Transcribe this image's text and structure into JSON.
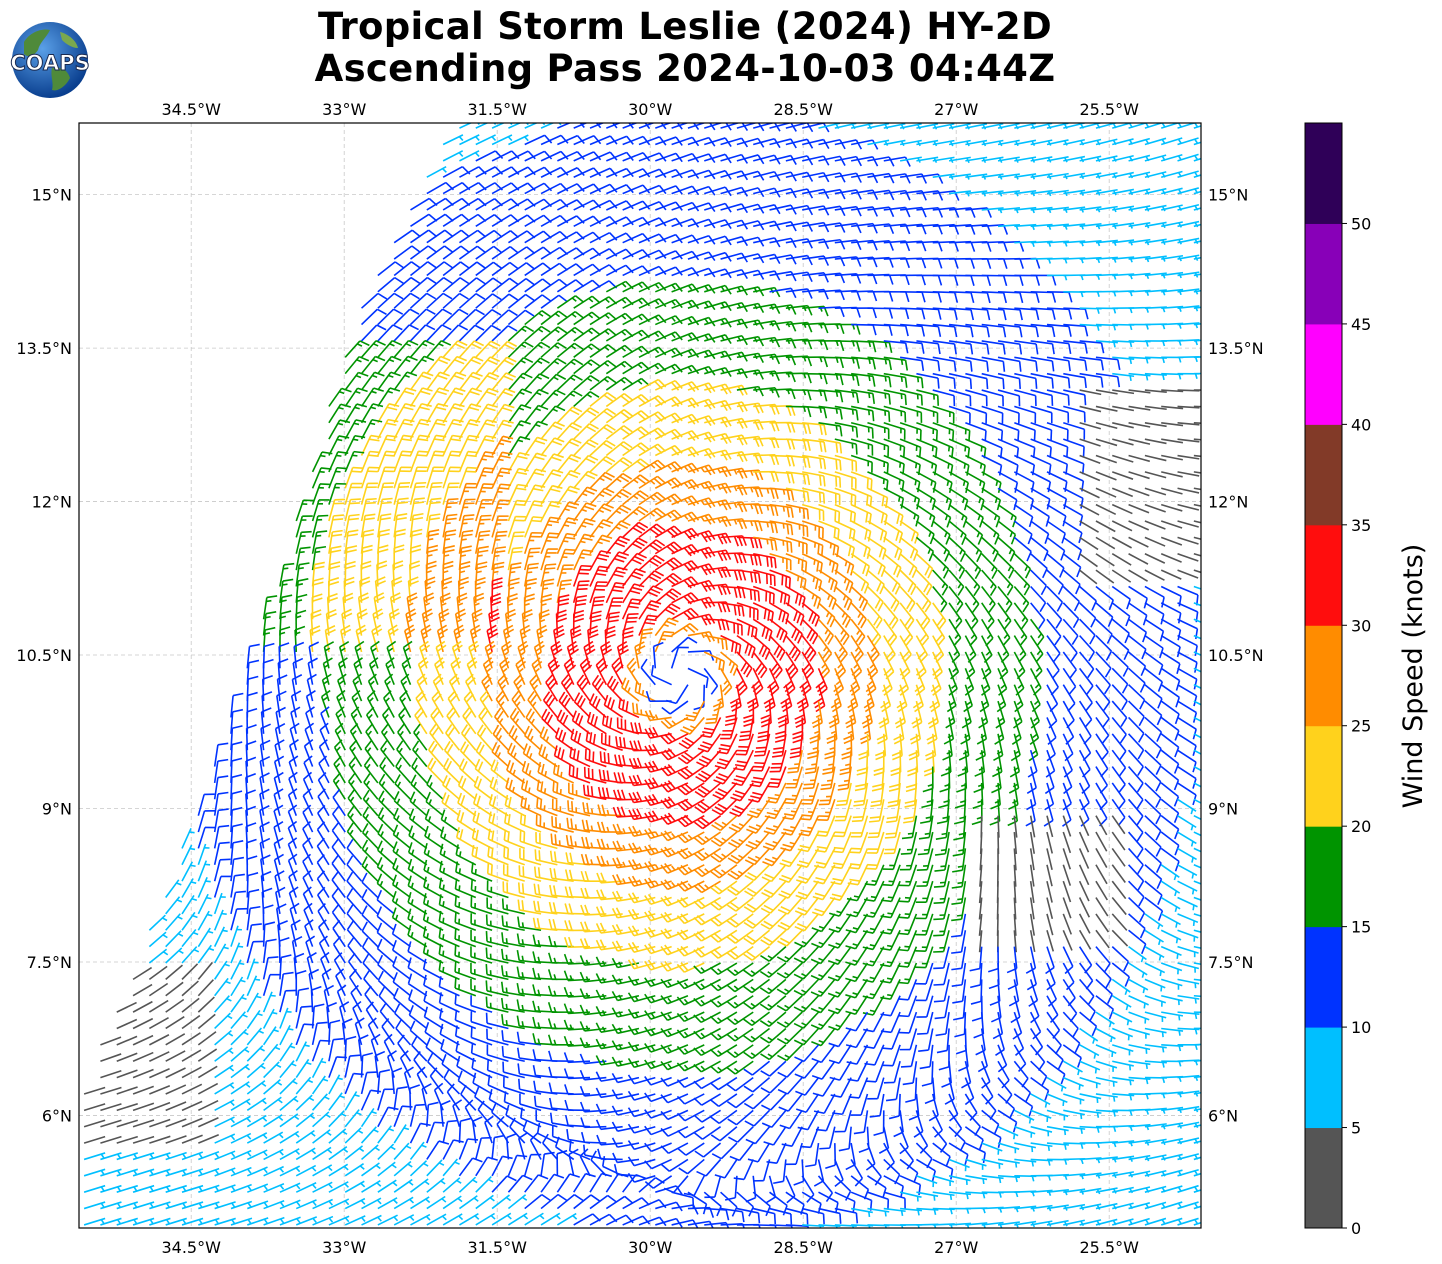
{
  "title": {
    "line1": "Tropical Storm Leslie (2024) HY-2D",
    "line2": "Ascending Pass 2024-10-03 04:44Z"
  },
  "logo": {
    "text": "COAPS"
  },
  "map": {
    "lon_ticks": [
      "34.5°W",
      "33°W",
      "31.5°W",
      "30°W",
      "28.5°W",
      "27°W",
      "25.5°W"
    ],
    "lat_ticks": [
      "15°N",
      "13.5°N",
      "12°N",
      "10.5°N",
      "9°N",
      "7.5°N",
      "6°N"
    ],
    "lon_values": [
      -34.5,
      -33,
      -31.5,
      -30,
      -28.5,
      -27,
      -25.5
    ],
    "lat_values": [
      15,
      13.5,
      12,
      10.5,
      9,
      7.5,
      6
    ],
    "lon_range": [
      -35.6,
      -24.6
    ],
    "lat_range": [
      4.9,
      15.7
    ],
    "storm_center": {
      "lon": -29.7,
      "lat": 10.3
    },
    "grid": "dashed"
  },
  "colorbar": {
    "label": "Wind Speed (knots)",
    "ticks": [
      "0",
      "5",
      "10",
      "15",
      "20",
      "25",
      "30",
      "35",
      "40",
      "45",
      "50"
    ],
    "colors": [
      "#555555",
      "#00bfff",
      "#0033ff",
      "#009400",
      "#ffd21c",
      "#ff8c00",
      "#ff0d0d",
      "#823a28",
      "#ff00ff",
      "#8800b8",
      "#2f0058"
    ],
    "range": [
      0,
      55
    ]
  },
  "chart_data": {
    "type": "map",
    "title": "Tropical Storm Leslie (2024) HY-2D Ascending Pass 2024-10-03 04:44Z",
    "colorbar_label": "Wind Speed (knots)",
    "xlim": [
      -35.6,
      -24.6
    ],
    "ylim": [
      4.9,
      15.7
    ],
    "wind_speed_bins_knots": [
      0,
      5,
      10,
      15,
      20,
      25,
      30,
      35,
      40,
      45,
      50,
      55
    ],
    "approx_storm_center": {
      "lon": -29.7,
      "lat": 10.3
    },
    "max_observed_speed_knots_approx": 32
  }
}
